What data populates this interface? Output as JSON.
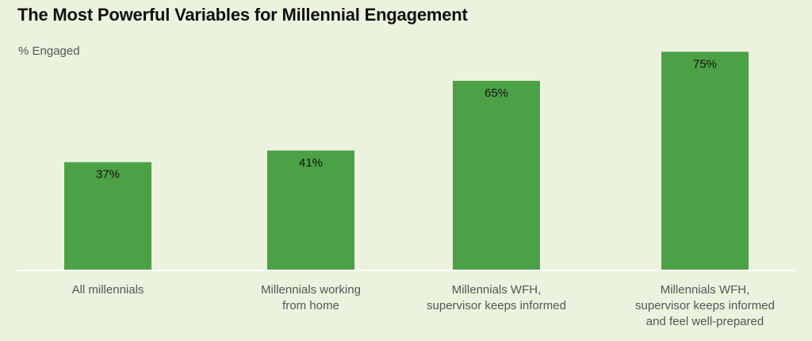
{
  "title": "The Most Powerful Variables for Millennial Engagement",
  "colors": {
    "background": "#EBF3DF",
    "bar": "#4CA147",
    "baseline": "#FFFFFF",
    "value_text": "#111111",
    "label_text": "#555555"
  },
  "chart_data": {
    "type": "bar",
    "title": "The Most Powerful Variables for Millennial Engagement",
    "xlabel": "",
    "ylabel": "% Engaged",
    "categories": [
      "All millennials",
      "Millennials working\nfrom home",
      "Millennials WFH,\nsupervisor keeps informed",
      "Millennials WFH,\nsupervisor keeps informed\nand feel well-prepared"
    ],
    "values": [
      37,
      41,
      65,
      75
    ],
    "value_labels": [
      "37%",
      "41%",
      "65%",
      "75%"
    ],
    "ylim": [
      0,
      83
    ],
    "grid": false,
    "legend": "none"
  }
}
